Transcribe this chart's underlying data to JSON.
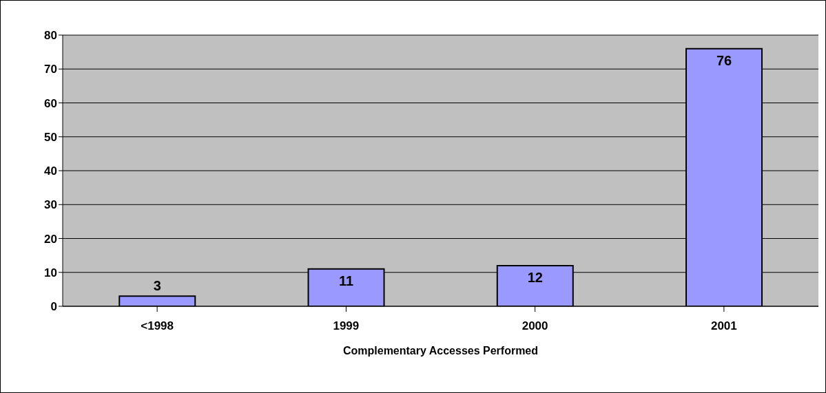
{
  "chart_data": {
    "type": "bar",
    "xlabel": "Complementary Accesses Performed",
    "categories": [
      "<1998",
      "1999",
      "2000",
      "2001"
    ],
    "values": [
      3,
      11,
      12,
      76
    ],
    "color": "#9999ff",
    "ylim": [
      0,
      80
    ],
    "yticks": [
      0,
      10,
      20,
      30,
      40,
      50,
      60,
      70,
      80
    ],
    "grid": "y",
    "data_labels": true,
    "legend": false
  }
}
